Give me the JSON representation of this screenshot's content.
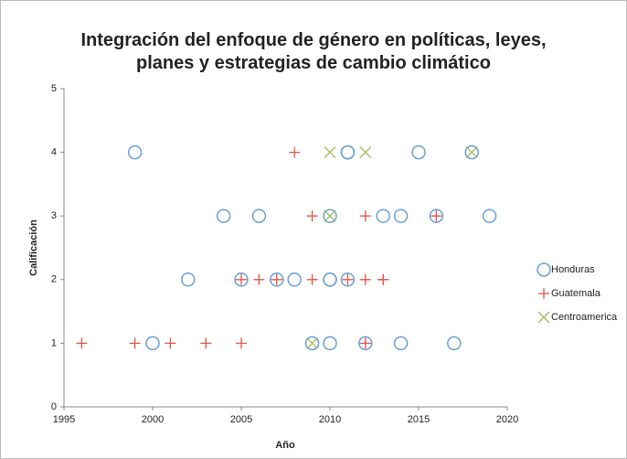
{
  "chart_data": {
    "type": "scatter",
    "title": "Integración del enfoque de género en políticas, leyes, planes y estrategias de cambio climático",
    "xlabel": "Año",
    "ylabel": "Calificación",
    "xlim": [
      1995,
      2020
    ],
    "xticks": [
      1995,
      2000,
      2005,
      2010,
      2015,
      2020
    ],
    "ylim": [
      0,
      5
    ],
    "yticks": [
      0,
      1,
      2,
      3,
      4,
      5
    ],
    "grid": false,
    "legend": "right",
    "series": [
      {
        "name": "Honduras",
        "color": "#6b9fd1",
        "marker": "circle",
        "x": [
          1999,
          2011,
          2011,
          2015,
          2018,
          2004,
          2006,
          2010,
          2013,
          2014,
          2016,
          2019,
          2002,
          2005,
          2007,
          2008,
          2010,
          2010,
          2011,
          2000,
          2009,
          2010,
          2012,
          2014,
          2017
        ],
        "values": [
          4,
          4,
          4,
          4,
          4,
          3,
          3,
          3,
          3,
          3,
          3,
          3,
          2,
          2,
          2,
          2,
          2,
          2,
          2,
          1,
          1,
          1,
          1,
          1,
          1
        ]
      },
      {
        "name": "Guatemala",
        "color": "#e0534a",
        "marker": "plus",
        "x": [
          2008,
          2009,
          2012,
          2016,
          2005,
          2006,
          2007,
          2009,
          2011,
          2012,
          2013,
          2013,
          1996,
          1999,
          2001,
          2003,
          2005,
          2012
        ],
        "values": [
          4,
          3,
          3,
          3,
          2,
          2,
          2,
          2,
          2,
          2,
          2,
          2,
          1,
          1,
          1,
          1,
          1,
          1
        ]
      },
      {
        "name": "Centroamerica",
        "color": "#9bbb59",
        "marker": "cross",
        "x": [
          2010,
          2012,
          2018,
          2010,
          2009
        ],
        "values": [
          4,
          4,
          4,
          3,
          1
        ]
      }
    ]
  }
}
